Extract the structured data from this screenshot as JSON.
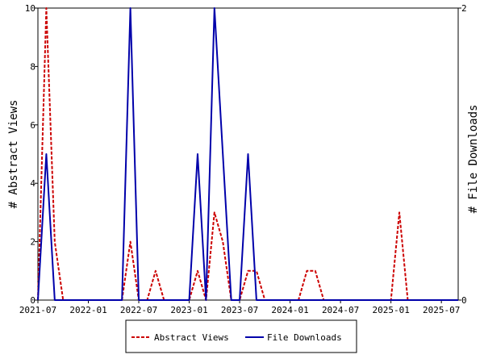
{
  "chart_data": {
    "type": "line",
    "xlabel": "",
    "ylabel": "# Abstract Views",
    "y2label": "# File Downloads",
    "x_ticks": [
      "2021-07",
      "2022-01",
      "2022-07",
      "2023-01",
      "2023-07",
      "2024-01",
      "2024-07",
      "2025-01",
      "2025-07"
    ],
    "xlim": [
      "2021-07",
      "2025-09"
    ],
    "ylim": [
      0,
      10
    ],
    "y_ticks": [
      0,
      2,
      4,
      6,
      8,
      10
    ],
    "y2lim": [
      0,
      2
    ],
    "y2_ticks": [
      0,
      2
    ],
    "grid": false,
    "legend_position": "bottom",
    "series": [
      {
        "name": "Abstract Views",
        "axis": "left",
        "color": "#cc0000",
        "style": "dashed",
        "points": [
          [
            "2021-07",
            0
          ],
          [
            "2021-08",
            10
          ],
          [
            "2021-09",
            2
          ],
          [
            "2021-10",
            0
          ],
          [
            "2022-05",
            0
          ],
          [
            "2022-06",
            2
          ],
          [
            "2022-07",
            0
          ],
          [
            "2022-08",
            0
          ],
          [
            "2022-09",
            1
          ],
          [
            "2022-10",
            0
          ],
          [
            "2023-01",
            0
          ],
          [
            "2023-02",
            1
          ],
          [
            "2023-03",
            0
          ],
          [
            "2023-04",
            3
          ],
          [
            "2023-05",
            2
          ],
          [
            "2023-06",
            0
          ],
          [
            "2023-07",
            0
          ],
          [
            "2023-08",
            1
          ],
          [
            "2023-09",
            1
          ],
          [
            "2023-10",
            0
          ],
          [
            "2024-02",
            0
          ],
          [
            "2024-03",
            1
          ],
          [
            "2024-04",
            1
          ],
          [
            "2024-05",
            0
          ],
          [
            "2025-01",
            0
          ],
          [
            "2025-02",
            3
          ],
          [
            "2025-03",
            0
          ],
          [
            "2025-09",
            0
          ]
        ]
      },
      {
        "name": "File Downloads",
        "axis": "right",
        "color": "#0000aa",
        "style": "solid",
        "points": [
          [
            "2021-07",
            0
          ],
          [
            "2021-08",
            1
          ],
          [
            "2021-09",
            0
          ],
          [
            "2022-05",
            0
          ],
          [
            "2022-06",
            2
          ],
          [
            "2022-07",
            0
          ],
          [
            "2023-01",
            0
          ],
          [
            "2023-02",
            1
          ],
          [
            "2023-03",
            0
          ],
          [
            "2023-04",
            2
          ],
          [
            "2023-05",
            1
          ],
          [
            "2023-06",
            0
          ],
          [
            "2023-07",
            0
          ],
          [
            "2023-08",
            1
          ],
          [
            "2023-09",
            0
          ],
          [
            "2025-09",
            0
          ]
        ]
      }
    ]
  }
}
